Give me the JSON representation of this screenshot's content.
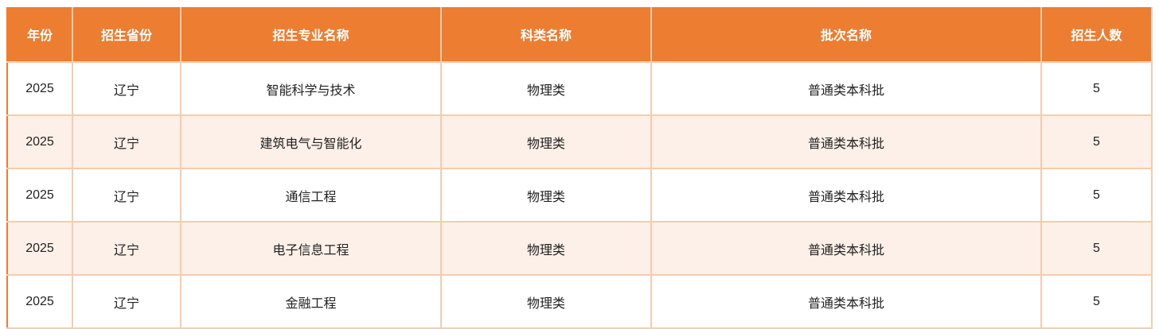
{
  "table": {
    "headers": [
      "年份",
      "招生省份",
      "招生专业名称",
      "科类名称",
      "批次名称",
      "招生人数"
    ],
    "rows": [
      [
        "2025",
        "辽宁",
        "智能科学与技术",
        "物理类",
        "普通类本科批",
        "5"
      ],
      [
        "2025",
        "辽宁",
        "建筑电气与智能化",
        "物理类",
        "普通类本科批",
        "5"
      ],
      [
        "2025",
        "辽宁",
        "通信工程",
        "物理类",
        "普通类本科批",
        "5"
      ],
      [
        "2025",
        "辽宁",
        "电子信息工程",
        "物理类",
        "普通类本科批",
        "5"
      ],
      [
        "2025",
        "辽宁",
        "金融工程",
        "物理类",
        "普通类本科批",
        "5"
      ]
    ]
  },
  "colors": {
    "header": "#ED7D31",
    "border": "#F8CBAD",
    "alt_row": "#FDF0E8"
  }
}
